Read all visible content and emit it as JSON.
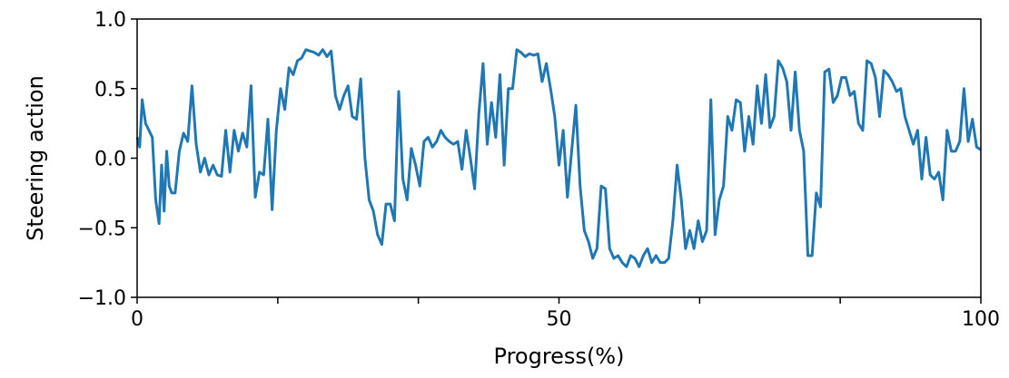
{
  "chart_data": {
    "type": "line",
    "title": "",
    "xlabel": "Progress(%)",
    "ylabel": "Steering action",
    "xlim": [
      0,
      100
    ],
    "ylim": [
      -1.0,
      1.0
    ],
    "grid": false,
    "line_color": "#1f77b4",
    "x_ticks": [
      0,
      16.67,
      33.33,
      50,
      66.67,
      83.33,
      100
    ],
    "x_tick_labels": [
      "0",
      "",
      "",
      "50",
      "",
      "",
      "100"
    ],
    "y_ticks": [
      -1.0,
      -0.5,
      0.0,
      0.5,
      1.0
    ],
    "y_tick_labels": [
      "−1.0",
      "−0.5",
      "0.0",
      "0.5",
      "1.0"
    ],
    "series": [
      {
        "x": [
          0,
          0.3,
          0.6,
          1.0,
          1.4,
          1.8,
          2.2,
          2.6,
          2.9,
          3.2,
          3.5,
          3.8,
          4.1,
          4.5,
          5.0,
          5.5,
          6.0,
          6.5,
          7.0,
          7.5,
          8.0,
          8.5,
          9.0,
          9.5,
          10.0,
          10.5,
          11.0,
          11.5,
          12.0,
          12.5,
          13.0,
          13.5,
          14.0,
          14.5,
          15.0,
          15.5,
          16.0,
          16.5,
          17.0,
          17.5,
          18.0,
          18.5,
          19.0,
          19.5,
          20.0,
          20.5,
          21.0,
          21.5,
          22.0,
          22.5,
          23.0,
          23.5,
          24.0,
          24.5,
          25.0,
          25.5,
          26.0,
          26.5,
          27.0,
          27.5,
          28.0,
          28.5,
          29.0,
          29.5,
          30.0,
          30.5,
          31.0,
          31.5,
          32.0,
          32.5,
          33.0,
          33.5,
          34.0,
          34.5,
          35.0,
          35.5,
          36.0,
          36.5,
          37.0,
          37.5,
          38.0,
          38.5,
          39.0,
          39.5,
          40.0,
          40.5,
          41.0,
          41.5,
          42.0,
          42.5,
          43.0,
          43.5,
          44.0,
          44.5,
          45.0,
          45.5,
          46.0,
          46.5,
          47.0,
          47.5,
          48.0,
          48.5,
          49.0,
          49.5,
          50.0,
          50.5,
          51.0,
          51.5,
          52.0,
          52.5,
          53.0,
          53.5,
          54.0,
          54.5,
          55.0,
          55.5,
          56.0,
          56.5,
          57.0,
          57.5,
          58.0,
          58.5,
          59.0,
          59.5,
          60.0,
          60.5,
          61.0,
          61.5,
          62.0,
          62.5,
          63.0,
          63.5,
          64.0,
          64.5,
          65.0,
          65.5,
          66.0,
          66.5,
          67.0,
          67.5,
          68.0,
          68.5,
          69.0,
          69.5,
          70.0,
          70.5,
          71.0,
          71.5,
          72.0,
          72.5,
          73.0,
          73.5,
          74.0,
          74.5,
          75.0,
          75.5,
          76.0,
          76.5,
          77.0,
          77.5,
          78.0,
          78.5,
          79.0,
          79.5,
          80.0,
          80.5,
          81.0,
          81.5,
          82.0,
          82.5,
          83.0,
          83.5,
          84.0,
          84.5,
          85.0,
          85.5,
          86.0,
          86.5,
          87.0,
          87.5,
          88.0,
          88.5,
          89.0,
          89.5,
          90.0,
          90.5,
          91.0,
          91.5,
          92.0,
          92.5,
          93.0,
          93.5,
          94.0,
          94.5,
          95.0,
          95.5,
          96.0,
          96.5,
          97.0,
          97.5,
          98.0,
          98.5,
          99.0,
          99.5,
          100.0
        ],
        "y": [
          0.15,
          0.08,
          0.42,
          0.25,
          0.2,
          0.15,
          -0.3,
          -0.47,
          -0.05,
          -0.38,
          0.05,
          -0.2,
          -0.25,
          -0.25,
          0.05,
          0.18,
          0.12,
          0.52,
          0.1,
          -0.1,
          0.0,
          -0.12,
          -0.05,
          -0.12,
          -0.13,
          0.2,
          -0.1,
          0.2,
          0.05,
          0.18,
          0.08,
          0.52,
          -0.28,
          -0.1,
          -0.12,
          0.28,
          -0.37,
          0.2,
          0.5,
          0.35,
          0.65,
          0.6,
          0.7,
          0.72,
          0.78,
          0.77,
          0.76,
          0.74,
          0.78,
          0.73,
          0.77,
          0.45,
          0.35,
          0.45,
          0.52,
          0.3,
          0.28,
          0.57,
          0.0,
          -0.3,
          -0.38,
          -0.55,
          -0.62,
          -0.33,
          -0.33,
          -0.45,
          0.48,
          -0.15,
          -0.3,
          0.07,
          -0.05,
          -0.2,
          0.12,
          0.15,
          0.08,
          0.12,
          0.2,
          0.15,
          0.12,
          0.1,
          0.12,
          -0.08,
          0.2,
          0.0,
          -0.22,
          0.32,
          0.68,
          0.1,
          0.4,
          0.15,
          0.6,
          -0.05,
          0.5,
          0.5,
          0.78,
          0.76,
          0.73,
          0.75,
          0.74,
          0.75,
          0.55,
          0.68,
          0.5,
          0.3,
          -0.05,
          0.2,
          -0.28,
          0.05,
          0.38,
          -0.2,
          -0.52,
          -0.6,
          -0.72,
          -0.65,
          -0.2,
          -0.22,
          -0.65,
          -0.72,
          -0.7,
          -0.75,
          -0.78,
          -0.7,
          -0.72,
          -0.78,
          -0.7,
          -0.65,
          -0.75,
          -0.7,
          -0.75,
          -0.75,
          -0.72,
          -0.45,
          -0.05,
          -0.3,
          -0.65,
          -0.52,
          -0.65,
          -0.45,
          -0.6,
          -0.52,
          0.42,
          -0.55,
          -0.3,
          -0.2,
          0.3,
          0.2,
          0.42,
          0.4,
          0.05,
          0.3,
          0.1,
          0.52,
          0.25,
          0.6,
          0.22,
          0.3,
          0.7,
          0.65,
          0.55,
          0.2,
          0.62,
          0.2,
          0.05,
          -0.7,
          -0.7,
          -0.25,
          -0.35,
          0.62,
          0.64,
          0.4,
          0.45,
          0.58,
          0.58,
          0.45,
          0.48,
          0.25,
          0.2,
          0.7,
          0.68,
          0.58,
          0.3,
          0.63,
          0.6,
          0.55,
          0.48,
          0.5,
          0.3,
          0.2,
          0.1,
          0.2,
          -0.15,
          0.15,
          -0.12,
          -0.15,
          -0.1,
          -0.3,
          0.2,
          0.05,
          0.05,
          0.12,
          0.5,
          0.12,
          0.28,
          0.08,
          0.06
        ]
      }
    ]
  }
}
